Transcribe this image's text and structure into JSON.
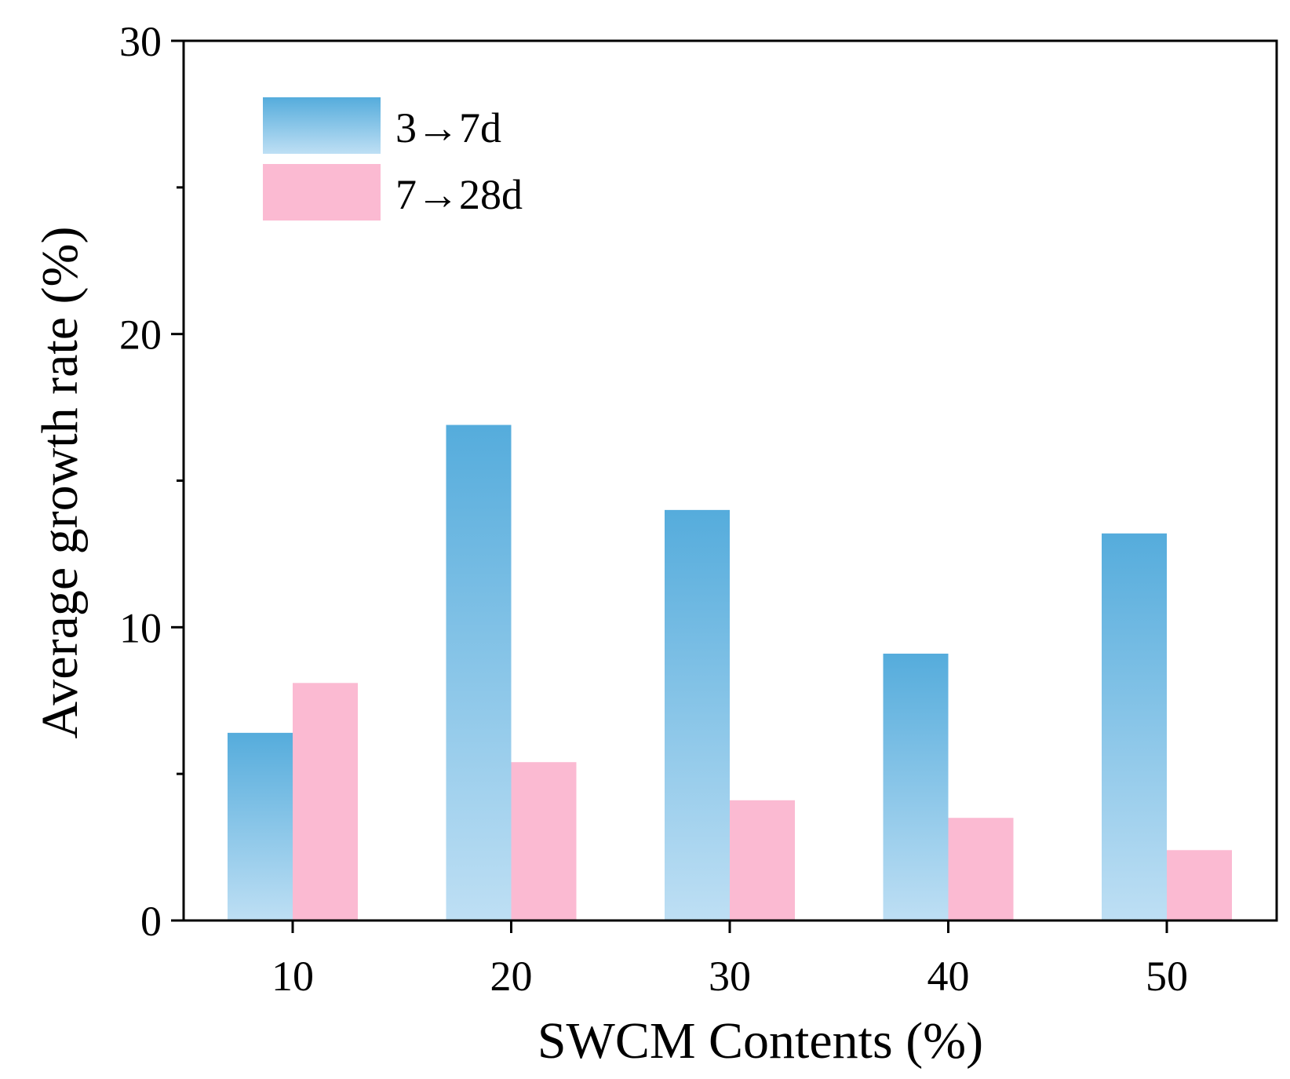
{
  "chart_data": {
    "type": "bar",
    "title": "",
    "xlabel": "SWCM Contents (%)",
    "ylabel": "Average growth rate (%)",
    "categories": [
      "10",
      "20",
      "30",
      "40",
      "50"
    ],
    "series": [
      {
        "name": "3→7d",
        "values": [
          6.4,
          16.9,
          14.0,
          9.1,
          13.2
        ],
        "color_top": "#55acdc",
        "color_bottom": "#bedff4"
      },
      {
        "name": "7→28d",
        "values": [
          8.1,
          5.4,
          4.1,
          3.5,
          2.4
        ],
        "color_top": "#fbbad2",
        "color_bottom": "#fbbad2"
      }
    ],
    "ylim": [
      0,
      30
    ],
    "yticks": [
      0,
      10,
      20,
      30
    ],
    "legend_position": "top-left",
    "grid": false
  }
}
